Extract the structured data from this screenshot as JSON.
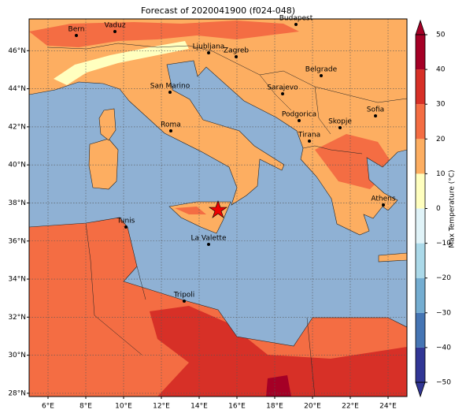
{
  "title": "Forecast of 2020041900 (f024-048)",
  "map": {
    "xlim": [
      5,
      25
    ],
    "ylim": [
      27.83,
      47.67
    ],
    "grid": true,
    "xticks": [
      {
        "value": 6,
        "label": "6°E"
      },
      {
        "value": 8,
        "label": "8°E"
      },
      {
        "value": 10,
        "label": "10°E"
      },
      {
        "value": 12,
        "label": "12°E"
      },
      {
        "value": 14,
        "label": "14°E"
      },
      {
        "value": 16,
        "label": "16°E"
      },
      {
        "value": 18,
        "label": "18°E"
      },
      {
        "value": 20,
        "label": "20°E"
      },
      {
        "value": 22,
        "label": "22°E"
      },
      {
        "value": 24,
        "label": "24°E"
      }
    ],
    "yticks": [
      {
        "value": 28,
        "label": "28°N"
      },
      {
        "value": 30,
        "label": "30°N"
      },
      {
        "value": 32,
        "label": "32°N"
      },
      {
        "value": 34,
        "label": "34°N"
      },
      {
        "value": 36,
        "label": "36°N"
      },
      {
        "value": 38,
        "label": "38°N"
      },
      {
        "value": 40,
        "label": "40°N"
      },
      {
        "value": 42,
        "label": "42°N"
      },
      {
        "value": 44,
        "label": "44°N"
      },
      {
        "value": 46,
        "label": "46°N"
      }
    ]
  },
  "cities": [
    "Bern",
    "Vaduz",
    "Budapest",
    "Ljubljana",
    "Zagreb",
    "Belgrade",
    "San Marino",
    "Sarajevo",
    "Sofia",
    "Podgorica",
    "Skopje",
    "Roma",
    "Tirana",
    "Athens",
    "Tunis",
    "La Valette",
    "Tripoli"
  ],
  "colorbar": {
    "label": "Max Temperature (°C)",
    "range": [
      -50,
      50
    ],
    "ticks": [
      {
        "value": -50,
        "label": "−50"
      },
      {
        "value": -40,
        "label": "−40"
      },
      {
        "value": -30,
        "label": "−30"
      },
      {
        "value": -20,
        "label": "−20"
      },
      {
        "value": -10,
        "label": "−10"
      },
      0,
      10,
      20,
      30,
      40,
      50
    ],
    "colors": [
      "#313695",
      "#4575b4",
      "#74add1",
      "#abd9e9",
      "#e0f3f8",
      "#ffffbf",
      "#fdae61",
      "#f46d43",
      "#d73027",
      "#a50026"
    ]
  }
}
